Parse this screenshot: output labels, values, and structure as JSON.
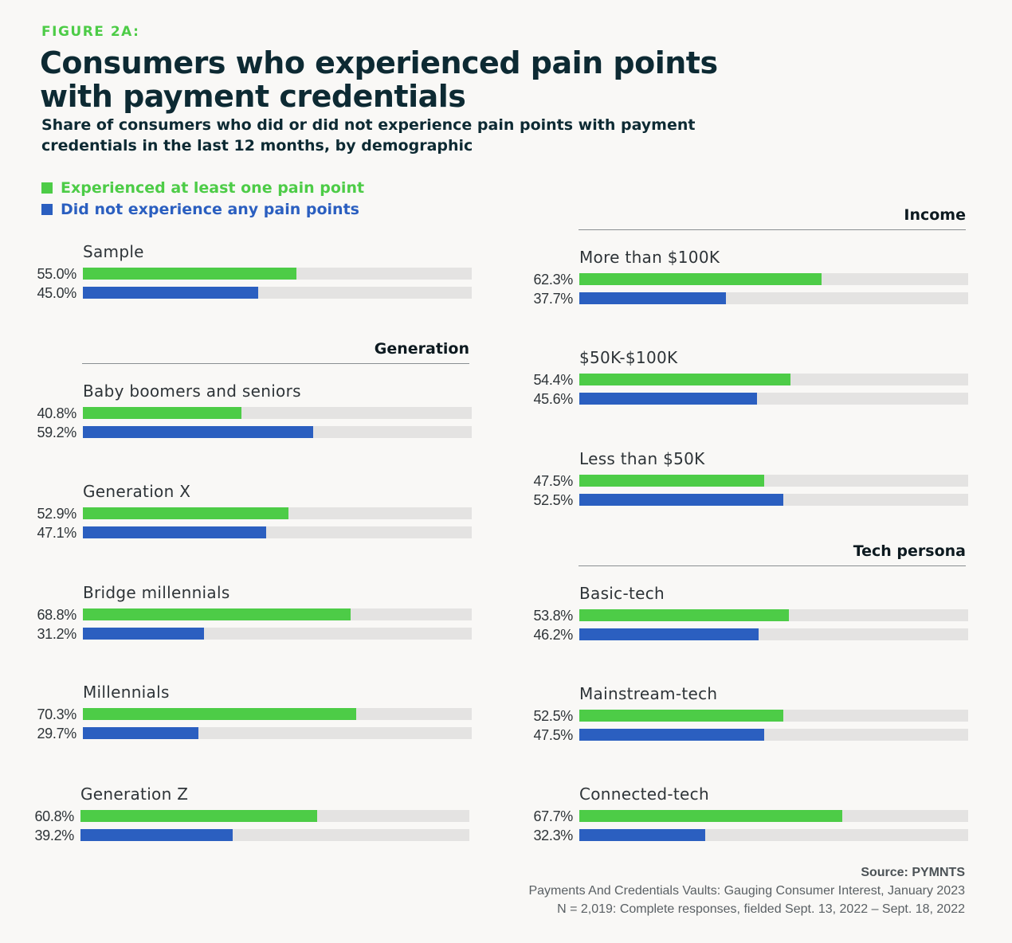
{
  "header": {
    "figure_label": "FIGURE 2A:",
    "title": "Consumers who experienced pain points with payment credentials",
    "subtitle": "Share of consumers who did or did not experience pain points with payment credentials in the last 12 months, by demographic"
  },
  "legend": {
    "experienced": "Experienced at least one pain point",
    "not_experienced": "Did not experience any pain points"
  },
  "colors": {
    "experienced": "#4dcc47",
    "not_experienced": "#2b5fc0",
    "track": "#e4e3e2"
  },
  "sections": {
    "generation": "Generation",
    "income": "Income",
    "tech": "Tech persona"
  },
  "chart_data": {
    "type": "bar",
    "orientation": "horizontal",
    "xlim": [
      0,
      100
    ],
    "series_names": [
      "Experienced at least one pain point",
      "Did not experience any pain points"
    ],
    "groups": [
      {
        "section": "",
        "name": "Sample",
        "values": [
          55.0,
          45.0
        ],
        "labels": [
          "55.0%",
          "45.0%"
        ]
      },
      {
        "section": "Generation",
        "name": "Baby boomers and seniors",
        "values": [
          40.8,
          59.2
        ],
        "labels": [
          "40.8%",
          "59.2%"
        ]
      },
      {
        "section": "Generation",
        "name": "Generation X",
        "values": [
          52.9,
          47.1
        ],
        "labels": [
          "52.9%",
          "47.1%"
        ]
      },
      {
        "section": "Generation",
        "name": "Bridge millennials",
        "values": [
          68.8,
          31.2
        ],
        "labels": [
          "68.8%",
          "31.2%"
        ]
      },
      {
        "section": "Generation",
        "name": "Millennials",
        "values": [
          70.3,
          29.7
        ],
        "labels": [
          "70.3%",
          "29.7%"
        ]
      },
      {
        "section": "Generation",
        "name": "Generation Z",
        "values": [
          60.8,
          39.2
        ],
        "labels": [
          "60.8%",
          "39.2%"
        ]
      },
      {
        "section": "Income",
        "name": "More than $100K",
        "values": [
          62.3,
          37.7
        ],
        "labels": [
          "62.3%",
          "37.7%"
        ]
      },
      {
        "section": "Income",
        "name": "$50K-$100K",
        "values": [
          54.4,
          45.6
        ],
        "labels": [
          "54.4%",
          "45.6%"
        ]
      },
      {
        "section": "Income",
        "name": "Less than $50K",
        "values": [
          47.5,
          52.5
        ],
        "labels": [
          "47.5%",
          "52.5%"
        ]
      },
      {
        "section": "Tech persona",
        "name": "Basic-tech",
        "values": [
          53.8,
          46.2
        ],
        "labels": [
          "53.8%",
          "46.2%"
        ]
      },
      {
        "section": "Tech persona",
        "name": "Mainstream-tech",
        "values": [
          52.5,
          47.5
        ],
        "labels": [
          "52.5%",
          "47.5%"
        ]
      },
      {
        "section": "Tech persona",
        "name": "Connected-tech",
        "values": [
          67.7,
          32.3
        ],
        "labels": [
          "67.7%",
          "32.3%"
        ]
      }
    ]
  },
  "source": {
    "line1": "Source: PYMNTS",
    "line2": "Payments And Credentials Vaults: Gauging Consumer Interest, January 2023",
    "line3": "N = 2,019: Complete responses, fielded Sept. 13, 2022 – Sept. 18, 2022"
  }
}
